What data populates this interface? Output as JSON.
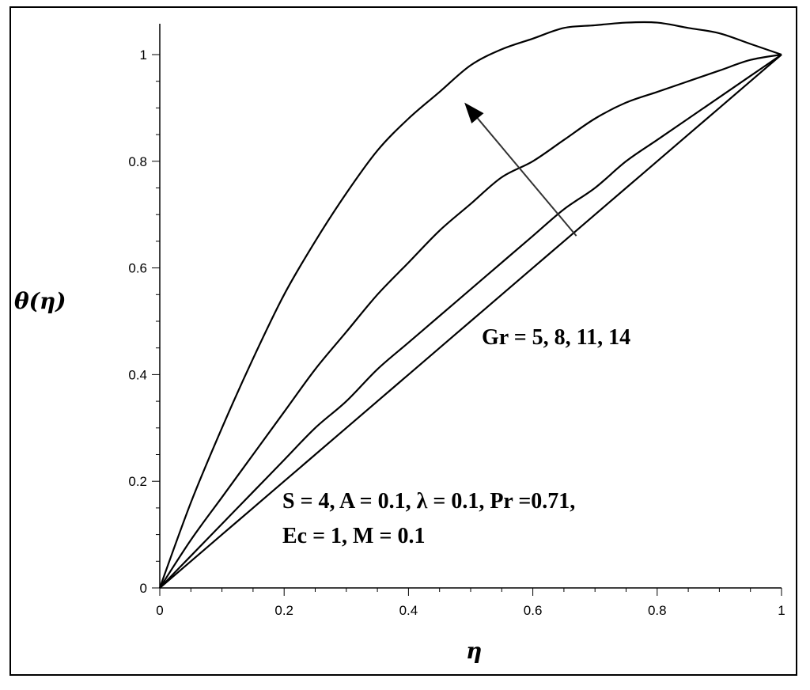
{
  "chart_data": {
    "type": "line",
    "xlabel": "η",
    "ylabel": "θ(η)",
    "xlim": [
      0,
      1
    ],
    "ylim": [
      0,
      1
    ],
    "x_ticks": [
      "0",
      "0.2",
      "0.4",
      "0.6",
      "0.8",
      "1"
    ],
    "y_ticks": [
      "0",
      "0.2",
      "0.4",
      "0.6",
      "0.8",
      "1"
    ],
    "grid": false,
    "line_color": "#000000",
    "x": [
      0,
      0.05,
      0.1,
      0.15,
      0.2,
      0.25,
      0.3,
      0.35,
      0.4,
      0.45,
      0.5,
      0.55,
      0.6,
      0.65,
      0.7,
      0.75,
      0.8,
      0.85,
      0.9,
      0.95,
      1.0
    ],
    "series": [
      {
        "values": [
          0,
          0.05,
          0.1,
          0.15,
          0.2,
          0.25,
          0.3,
          0.35,
          0.4,
          0.45,
          0.5,
          0.55,
          0.6,
          0.65,
          0.7,
          0.75,
          0.8,
          0.85,
          0.9,
          0.95,
          1.0
        ]
      },
      {
        "values": [
          0,
          0.06,
          0.12,
          0.18,
          0.24,
          0.3,
          0.35,
          0.41,
          0.46,
          0.51,
          0.56,
          0.61,
          0.66,
          0.71,
          0.75,
          0.8,
          0.84,
          0.88,
          0.92,
          0.96,
          1.0
        ]
      },
      {
        "values": [
          0,
          0.09,
          0.17,
          0.25,
          0.33,
          0.41,
          0.48,
          0.55,
          0.61,
          0.67,
          0.72,
          0.77,
          0.8,
          0.84,
          0.88,
          0.91,
          0.93,
          0.95,
          0.97,
          0.99,
          1.0
        ]
      },
      {
        "values": [
          0,
          0.16,
          0.3,
          0.43,
          0.55,
          0.65,
          0.74,
          0.82,
          0.88,
          0.93,
          0.98,
          1.01,
          1.03,
          1.05,
          1.055,
          1.06,
          1.06,
          1.05,
          1.04,
          1.02,
          1.0
        ]
      }
    ],
    "annotations": [
      {
        "text": "Gr = 5, 8, 11, 14"
      },
      {
        "text": "S = 4, A = 0.1, λ = 0.1, Pr =0.71,"
      },
      {
        "text": "Ec = 1, M = 0.1"
      }
    ],
    "arrow": {
      "from": [
        0.67,
        0.66
      ],
      "to": [
        0.49,
        0.91
      ]
    }
  }
}
